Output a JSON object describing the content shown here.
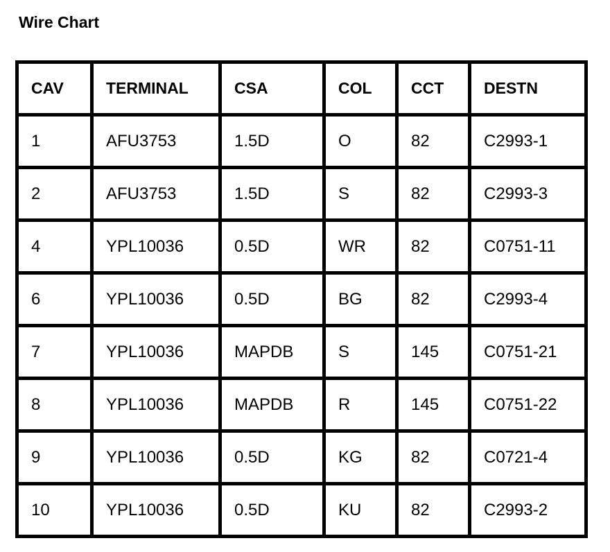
{
  "title": "Wire Chart",
  "colors": {
    "background": "#ffffff",
    "border": "#000000",
    "text": "#000000"
  },
  "table": {
    "headers": [
      "CAV",
      "TERMINAL",
      "CSA",
      "COL",
      "CCT",
      "DESTN"
    ],
    "rows": [
      [
        "1",
        "AFU3753",
        "1.5D",
        "O",
        "82",
        "C2993-1"
      ],
      [
        "2",
        "AFU3753",
        "1.5D",
        "S",
        "82",
        "C2993-3"
      ],
      [
        "4",
        "YPL10036",
        "0.5D",
        "WR",
        "82",
        "C0751-11"
      ],
      [
        "6",
        "YPL10036",
        "0.5D",
        "BG",
        "82",
        "C2993-4"
      ],
      [
        "7",
        "YPL10036",
        "MAPDB",
        "S",
        "145",
        "C0751-21"
      ],
      [
        "8",
        "YPL10036",
        "MAPDB",
        "R",
        "145",
        "C0751-22"
      ],
      [
        "9",
        "YPL10036",
        "0.5D",
        "KG",
        "82",
        "C0721-4"
      ],
      [
        "10",
        "YPL10036",
        "0.5D",
        "KU",
        "82",
        "C2993-2"
      ]
    ]
  }
}
